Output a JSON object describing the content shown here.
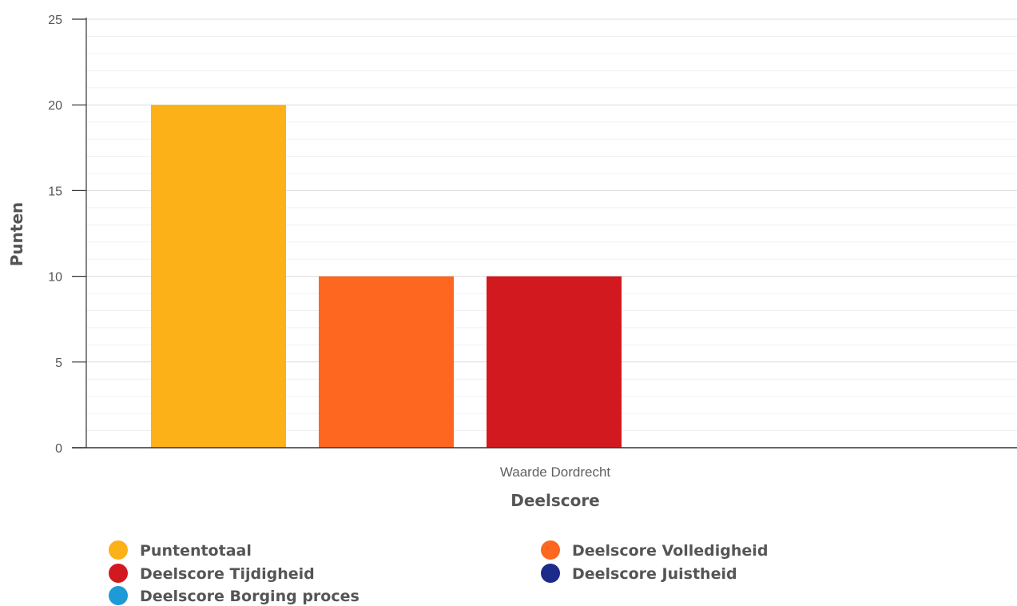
{
  "chart_data": {
    "type": "bar",
    "title": "",
    "categories": [
      "Waarde Dordrecht"
    ],
    "series": [
      {
        "name": "Puntentotaal",
        "values": [
          20
        ],
        "color": "#fbb117"
      },
      {
        "name": "Deelscore Volledigheid",
        "values": [
          10
        ],
        "color": "#fd6720"
      },
      {
        "name": "Deelscore Tijdigheid",
        "values": [
          10
        ],
        "color": "#d31920"
      },
      {
        "name": "Deelscore Juistheid",
        "values": [
          0
        ],
        "color": "#1c2a8a"
      },
      {
        "name": "Deelscore Borging proces",
        "values": [
          0
        ],
        "color": "#1e9ad6"
      }
    ],
    "xlabel": "Deelscore",
    "ylabel": "Punten",
    "ylim": [
      0,
      25
    ],
    "yticks": [
      0,
      5,
      10,
      15,
      20,
      25
    ],
    "grid": true,
    "legend_position": "bottom"
  }
}
